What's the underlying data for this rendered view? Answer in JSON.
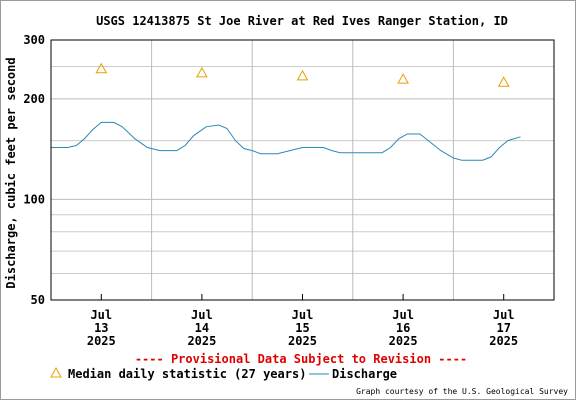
{
  "chart_data": {
    "type": "line",
    "title": "USGS 12413875 St Joe River at Red Ives Ranger Station, ID",
    "ylabel": "Discharge, cubic feet per second",
    "xlabel": "",
    "yscale": "log",
    "ylim": [
      50,
      300
    ],
    "y_ticks": [
      {
        "value": 50,
        "label": "50"
      },
      {
        "value": 100,
        "label": "100"
      },
      {
        "value": 200,
        "label": "200"
      },
      {
        "value": 300,
        "label": "300"
      }
    ],
    "y_minor_grid": [
      60,
      70,
      80,
      90,
      150,
      250
    ],
    "xlim": [
      "2025-07-12T12:00",
      "2025-07-17T12:00"
    ],
    "x_ticks": [
      {
        "time": "2025-07-13T00:00",
        "line1": "Jul",
        "line2": "13",
        "line3": "2025"
      },
      {
        "time": "2025-07-14T00:00",
        "line1": "Jul",
        "line2": "14",
        "line3": "2025"
      },
      {
        "time": "2025-07-15T00:00",
        "line1": "Jul",
        "line2": "15",
        "line3": "2025"
      },
      {
        "time": "2025-07-16T00:00",
        "line1": "Jul",
        "line2": "16",
        "line3": "2025"
      },
      {
        "time": "2025-07-17T00:00",
        "line1": "Jul",
        "line2": "17",
        "line3": "2025"
      }
    ],
    "day_boundaries": [
      "2025-07-13T12:00",
      "2025-07-14T12:00",
      "2025-07-15T12:00",
      "2025-07-16T12:00"
    ],
    "grid": true,
    "series": [
      {
        "name": "Discharge",
        "color": "#2a8ab7",
        "style": "line",
        "points": [
          [
            "2025-07-12T12:00",
            143
          ],
          [
            "2025-07-12T16:00",
            143
          ],
          [
            "2025-07-12T18:00",
            145
          ],
          [
            "2025-07-12T20:00",
            152
          ],
          [
            "2025-07-12T22:00",
            162
          ],
          [
            "2025-07-13T00:00",
            170
          ],
          [
            "2025-07-13T03:00",
            170
          ],
          [
            "2025-07-13T05:00",
            165
          ],
          [
            "2025-07-13T08:00",
            152
          ],
          [
            "2025-07-13T11:00",
            143
          ],
          [
            "2025-07-13T14:00",
            140
          ],
          [
            "2025-07-13T18:00",
            140
          ],
          [
            "2025-07-13T20:00",
            145
          ],
          [
            "2025-07-13T22:00",
            155
          ],
          [
            "2025-07-14T01:00",
            165
          ],
          [
            "2025-07-14T04:00",
            167
          ],
          [
            "2025-07-14T06:00",
            163
          ],
          [
            "2025-07-14T08:00",
            150
          ],
          [
            "2025-07-14T10:00",
            142
          ],
          [
            "2025-07-14T12:00",
            140
          ],
          [
            "2025-07-14T14:00",
            137
          ],
          [
            "2025-07-14T18:00",
            137
          ],
          [
            "2025-07-14T21:00",
            140
          ],
          [
            "2025-07-15T00:00",
            143
          ],
          [
            "2025-07-15T05:00",
            143
          ],
          [
            "2025-07-15T07:00",
            140
          ],
          [
            "2025-07-15T09:00",
            138
          ],
          [
            "2025-07-15T14:00",
            138
          ],
          [
            "2025-07-15T19:00",
            138
          ],
          [
            "2025-07-15T21:00",
            143
          ],
          [
            "2025-07-15T23:00",
            152
          ],
          [
            "2025-07-16T01:00",
            157
          ],
          [
            "2025-07-16T04:00",
            157
          ],
          [
            "2025-07-16T06:00",
            150
          ],
          [
            "2025-07-16T09:00",
            140
          ],
          [
            "2025-07-16T12:00",
            133
          ],
          [
            "2025-07-16T14:00",
            131
          ],
          [
            "2025-07-16T19:00",
            131
          ],
          [
            "2025-07-16T21:00",
            134
          ],
          [
            "2025-07-16T23:00",
            143
          ],
          [
            "2025-07-17T01:00",
            150
          ],
          [
            "2025-07-17T04:00",
            154
          ]
        ]
      },
      {
        "name": "Median daily statistic (27 years)",
        "color": "#e8a000",
        "style": "triangle",
        "points": [
          [
            "2025-07-13T00:00",
            247
          ],
          [
            "2025-07-14T00:00",
            240
          ],
          [
            "2025-07-15T00:00",
            235
          ],
          [
            "2025-07-16T00:00",
            230
          ],
          [
            "2025-07-17T00:00",
            225
          ]
        ]
      }
    ],
    "provisional_note": "---- Provisional Data Subject to Revision ----",
    "credit": "Graph courtesy of the U.S. Geological Survey"
  }
}
